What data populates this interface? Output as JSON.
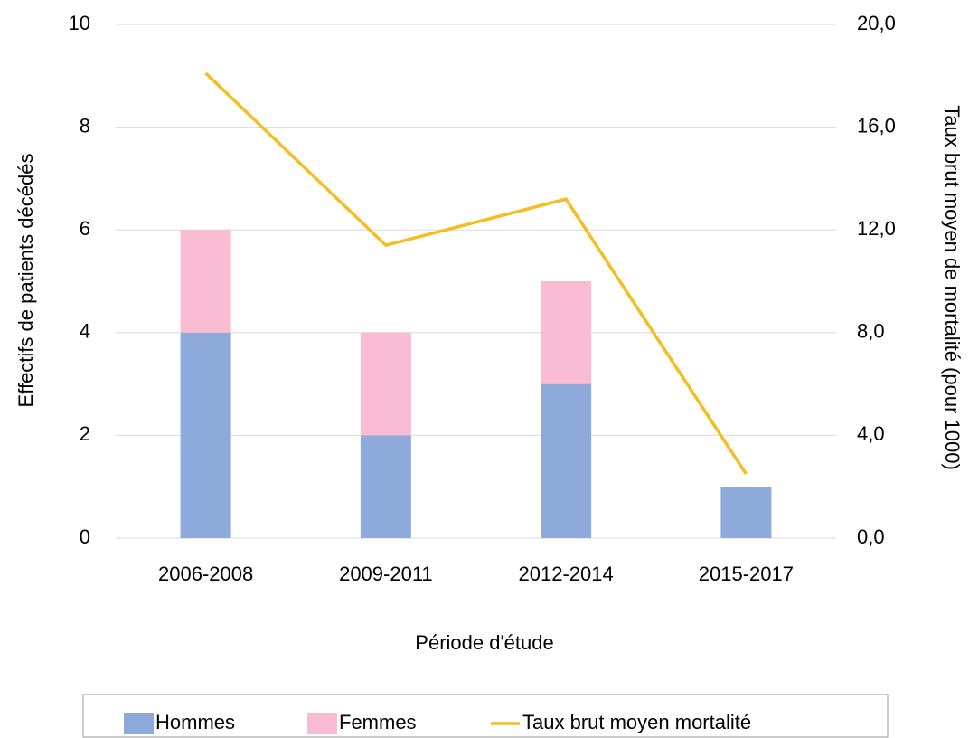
{
  "chart_data": {
    "type": "bar",
    "x_label": "Période d'étude",
    "y_label": "Effectifs de patients décédés",
    "y2_label": "Taux brut moyen de mortalité (pour 1000)",
    "categories": [
      "2006-2008",
      "2009-2011",
      "2012-2014",
      "2015-2017"
    ],
    "stacked": true,
    "series": [
      {
        "name": "Hommes",
        "type": "bar",
        "color": "#8eaadb",
        "values": [
          4,
          2,
          3,
          1
        ]
      },
      {
        "name": "Femmes",
        "type": "bar",
        "color": "#f9bcd2",
        "values": [
          2,
          2,
          2,
          null
        ]
      },
      {
        "name": "Taux brut moyen mortalité",
        "type": "line",
        "axis": "y2",
        "color": "#f5bd1f",
        "values": [
          18.1,
          11.4,
          13.2,
          2.5
        ]
      }
    ],
    "ylim": [
      0,
      10
    ],
    "yticks": [
      0,
      2,
      4,
      6,
      8,
      10
    ],
    "y2lim": [
      0,
      20
    ],
    "y2ticks": [
      {
        "value": 0,
        "label": "0,0"
      },
      {
        "value": 4,
        "label": "4,0"
      },
      {
        "value": 8,
        "label": "8,0"
      },
      {
        "value": 12,
        "label": "12,0"
      },
      {
        "value": 16,
        "label": "16,0"
      },
      {
        "value": 20,
        "label": "20,0"
      }
    ],
    "grid": true,
    "legend": "bottom"
  }
}
